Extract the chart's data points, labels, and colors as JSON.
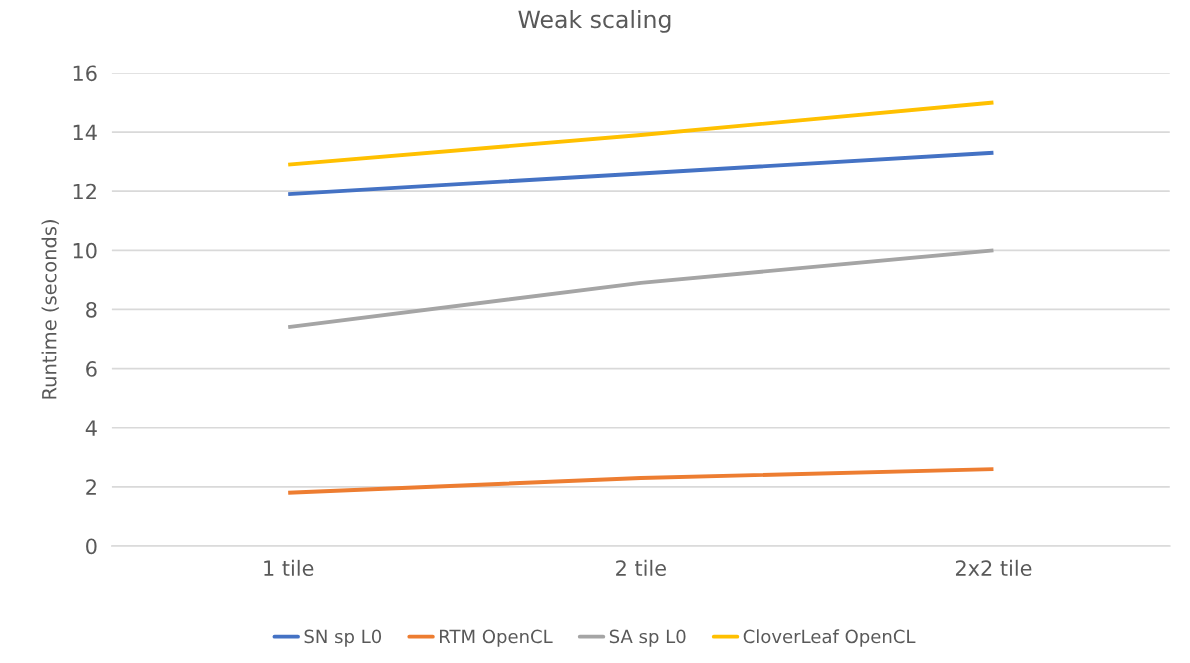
{
  "chart_data": {
    "type": "line",
    "title": "Weak scaling",
    "ylabel": "Runtime (seconds)",
    "categories": [
      "1 tile",
      "2 tile",
      "2x2 tile"
    ],
    "series": [
      {
        "name": "SN sp L0",
        "color": "#4472c4",
        "values": [
          11.9,
          12.6,
          13.3
        ]
      },
      {
        "name": "RTM OpenCL",
        "color": "#ed7d31",
        "values": [
          1.8,
          2.3,
          2.6
        ]
      },
      {
        "name": "SA sp L0",
        "color": "#a5a5a5",
        "values": [
          7.4,
          8.9,
          10.0
        ]
      },
      {
        "name": "CloverLeaf OpenCL",
        "color": "#ffc000",
        "values": [
          12.9,
          13.9,
          15.0
        ]
      }
    ],
    "ylim": [
      0,
      16
    ],
    "yticks": [
      0,
      2,
      4,
      6,
      8,
      10,
      12,
      14,
      16
    ],
    "grid": "y",
    "legend": "bottom",
    "line_style": "solid"
  }
}
